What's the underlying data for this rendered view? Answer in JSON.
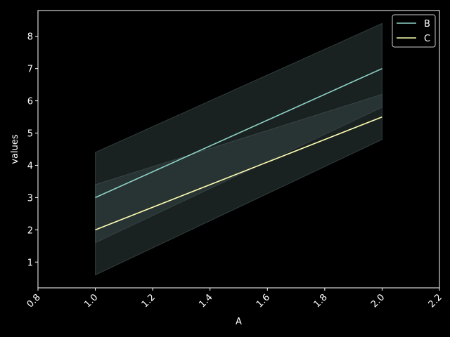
{
  "chart_data": {
    "type": "line",
    "title": "",
    "xlabel": "A",
    "ylabel": "values",
    "xlim": [
      0.8,
      2.2
    ],
    "ylim": [
      0.2,
      8.8
    ],
    "xticks": [
      "0.8",
      "1.0",
      "1.2",
      "1.4",
      "1.6",
      "1.8",
      "2.0",
      "2.2"
    ],
    "yticks": [
      "1",
      "2",
      "3",
      "4",
      "5",
      "6",
      "7",
      "8"
    ],
    "x": [
      1.0,
      2.0
    ],
    "series": [
      {
        "name": "B",
        "values": [
          3.0,
          7.0
        ],
        "band_lower": [
          1.6,
          5.8
        ],
        "band_upper": [
          4.4,
          8.4
        ],
        "color": "#8dd3c7"
      },
      {
        "name": "C",
        "values": [
          2.0,
          5.5
        ],
        "band_lower": [
          0.6,
          4.8
        ],
        "band_upper": [
          3.4,
          6.2
        ],
        "color": "#feffb3"
      }
    ],
    "grid": false,
    "legend_position": "top-right",
    "background": "#000000",
    "foreground": "#ffffff"
  }
}
